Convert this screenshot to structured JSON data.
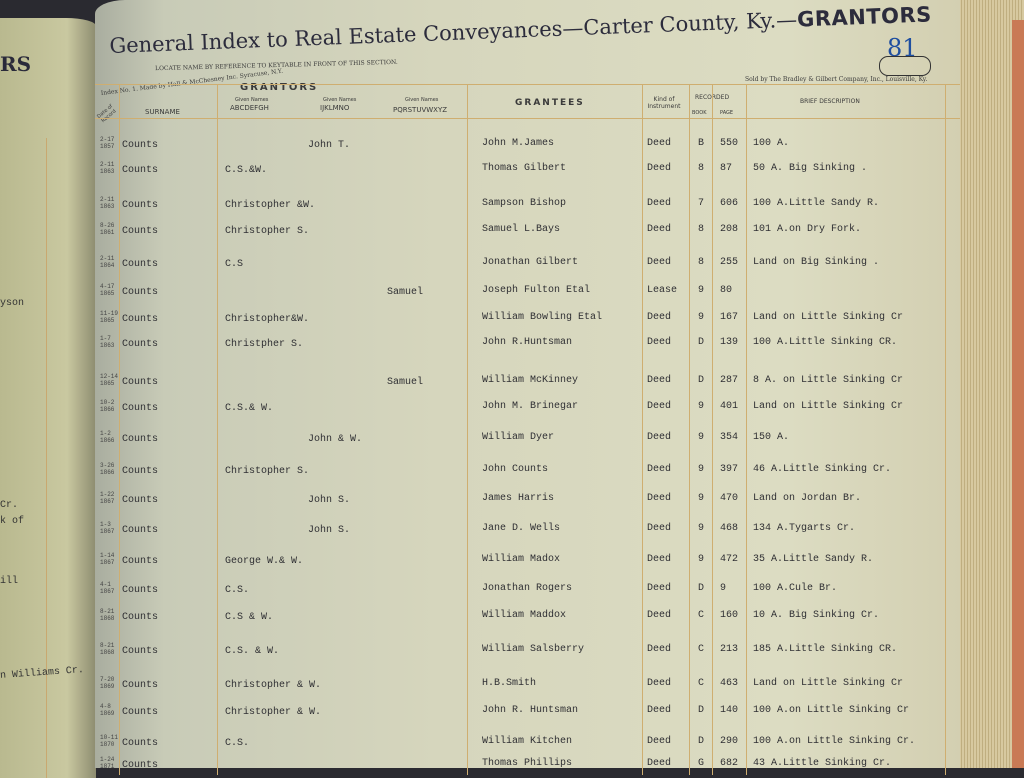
{
  "left_page": {
    "heading_fragment": "RS",
    "fragments": [
      "yson",
      "Cr.",
      "k of",
      "ill",
      "n Williams Cr."
    ]
  },
  "header": {
    "title_prefix": "General Index to Real Estate Conveyances—Carter County, Ky.—",
    "title_section": "GRANTORS",
    "page_number": "81",
    "locate_note": "LOCATE NAME BY REFERENCE TO KEYTABLE IN FRONT OF THIS SECTION.",
    "maker_note": "Index No. 1. Made by Hall & McChesney Inc. Syracuse, N.Y.",
    "seller_note": "Sold by The Bradley & Gilbert Company, Inc., Louisville, Ky."
  },
  "columns": {
    "date": "Date of Record",
    "grantors": "GRANTORS",
    "surname": "SURNAME",
    "given_label": "Given Names",
    "given_a_h": "ABCDEFGH",
    "given_i_o": "IJKLMNO",
    "given_p_z": "PQRSTUVWXYZ",
    "grantees": "GRANTEES",
    "kind": "Kind of Instrument",
    "recorded": "RECORDED",
    "book": "BOOK",
    "page": "PAGE",
    "description": "BRIEF DESCRIPTION"
  },
  "rows": [
    {
      "date": "2-17 1857",
      "surname": "Counts",
      "given_ah": "",
      "given_io": "John T.",
      "given_pz": "",
      "grantee": "John M.James",
      "kind": "Deed",
      "book": "B",
      "page": "550",
      "description": "100 A."
    },
    {
      "date": "2-11 1863",
      "surname": "Counts",
      "given_ah": "C.S.&W.",
      "given_io": "",
      "given_pz": "",
      "grantee": "Thomas Gilbert",
      "kind": "Deed",
      "book": "8",
      "page": "87",
      "description": "50 A. Big Sinking ."
    },
    {
      "date": "2-11 1863",
      "surname": "Counts",
      "given_ah": "Christopher &W.",
      "given_io": "",
      "given_pz": "",
      "grantee": "Sampson Bishop",
      "kind": "Deed",
      "book": "7",
      "page": "606",
      "description": "100 A.Little Sandy R."
    },
    {
      "date": "8-26 1861",
      "surname": "Counts",
      "given_ah": "Christopher S.",
      "given_io": "",
      "given_pz": "",
      "grantee": "Samuel  L.Bays",
      "kind": "Deed",
      "book": "8",
      "page": "208",
      "description": "101 A.on Dry Fork."
    },
    {
      "date": "2-11 1864",
      "surname": "Counts",
      "given_ah": "C.S",
      "given_io": "",
      "given_pz": "",
      "grantee": "Jonathan Gilbert",
      "kind": "Deed",
      "book": "8",
      "page": "255",
      "description": "Land on Big Sinking ."
    },
    {
      "date": "4-17 1865",
      "surname": "Counts",
      "given_ah": "",
      "given_io": "",
      "given_pz": "Samuel",
      "grantee": "Joseph Fulton Etal",
      "kind": "Lease",
      "book": "9",
      "page": "80",
      "description": ""
    },
    {
      "date": "11-19 1865",
      "surname": "Counts",
      "given_ah": "Christopher&W.",
      "given_io": "",
      "given_pz": "",
      "grantee": "William Bowling Etal",
      "kind": "Deed",
      "book": "9",
      "page": "167",
      "description": "Land on Little Sinking Cr"
    },
    {
      "date": "1-7 1863",
      "surname": "Counts",
      "given_ah": "Christpher S.",
      "given_io": "",
      "given_pz": "",
      "grantee": "John R.Huntsman",
      "kind": "Deed",
      "book": "D",
      "page": "139",
      "description": "100 A.Little Sinking CR."
    },
    {
      "date": "12-14 1865",
      "surname": "Counts",
      "given_ah": "",
      "given_io": "",
      "given_pz": "Samuel",
      "grantee": "William McKinney",
      "kind": "Deed",
      "book": "D",
      "page": "287",
      "description": "8 A. on Little Sinking Cr"
    },
    {
      "date": "10-2 1866",
      "surname": "Counts",
      "given_ah": "C.S.& W.",
      "given_io": "",
      "given_pz": "",
      "grantee": "John M. Brinegar",
      "kind": "Deed",
      "book": "9",
      "page": "401",
      "description": "Land on Little Sinking Cr"
    },
    {
      "date": "1-2 1866",
      "surname": "Counts",
      "given_ah": "",
      "given_io": "John & W.",
      "given_pz": "",
      "grantee": "William Dyer",
      "kind": "Deed",
      "book": "9",
      "page": "354",
      "description": "150 A."
    },
    {
      "date": "3-26 1866",
      "surname": "Counts",
      "given_ah": "Christopher S.",
      "given_io": "",
      "given_pz": "",
      "grantee": "John Counts",
      "kind": "Deed",
      "book": "9",
      "page": "397",
      "description": "46 A.Little Sinking Cr."
    },
    {
      "date": "1-22 1867",
      "surname": "Counts",
      "given_ah": "",
      "given_io": "John S.",
      "given_pz": "",
      "grantee": "James Harris",
      "kind": "Deed",
      "book": "9",
      "page": "470",
      "description": "Land on Jordan Br."
    },
    {
      "date": "1-3 1867",
      "surname": "Counts",
      "given_ah": "",
      "given_io": "John S.",
      "given_pz": "",
      "grantee": "Jane D. Wells",
      "kind": "Deed",
      "book": "9",
      "page": "468",
      "description": "134 A.Tygarts Cr."
    },
    {
      "date": "1-14 1867",
      "surname": "Counts",
      "given_ah": "George W.& W.",
      "given_io": "",
      "given_pz": "",
      "grantee": "William Madox",
      "kind": "Deed",
      "book": "9",
      "page": "472",
      "description": "35 A.Little Sandy R."
    },
    {
      "date": "4-1 1867",
      "surname": "Counts",
      "given_ah": "C.S.",
      "given_io": "",
      "given_pz": "",
      "grantee": "Jonathan Rogers",
      "kind": "Deed",
      "book": "D",
      "page": "9",
      "description": "100 A.Cule Br."
    },
    {
      "date": "8-21 1868",
      "surname": "Counts",
      "given_ah": "C.S & W.",
      "given_io": "",
      "given_pz": "",
      "grantee": "William Maddox",
      "kind": "Deed",
      "book": "C",
      "page": "160",
      "description": "10 A. Big Sinking Cr."
    },
    {
      "date": "8-21 1868",
      "surname": "Counts",
      "given_ah": "C.S. & W.",
      "given_io": "",
      "given_pz": "",
      "grantee": "William Salsberry",
      "kind": "Deed",
      "book": "C",
      "page": "213",
      "description": "185 A.Little Sinking CR."
    },
    {
      "date": "7-20 1869",
      "surname": "Counts",
      "given_ah": "Christopher & W.",
      "given_io": "",
      "given_pz": "",
      "grantee": "H.B.Smith",
      "kind": "Deed",
      "book": "C",
      "page": "463",
      "description": "Land on Little Sinking Cr"
    },
    {
      "date": "4-8 1869",
      "surname": "Counts",
      "given_ah": "Christopher & W.",
      "given_io": "",
      "given_pz": "",
      "grantee": "John R. Huntsman",
      "kind": "Deed",
      "book": "D",
      "page": "140",
      "description": "100 A.on Little Sinking Cr"
    },
    {
      "date": "10-11 1870",
      "surname": "Counts",
      "given_ah": "C.S.",
      "given_io": "",
      "given_pz": "",
      "grantee": "William Kitchen",
      "kind": "Deed",
      "book": "D",
      "page": "290",
      "description": "100 A.on Little Sinking Cr."
    },
    {
      "date": "1-24 1871",
      "surname": "Counts",
      "given_ah": "",
      "given_io": "",
      "given_pz": "",
      "grantee": "Thomas Phillips",
      "kind": "Deed",
      "book": "G",
      "page": "682",
      "description": "43 A.Little Sinking Cr."
    }
  ]
}
